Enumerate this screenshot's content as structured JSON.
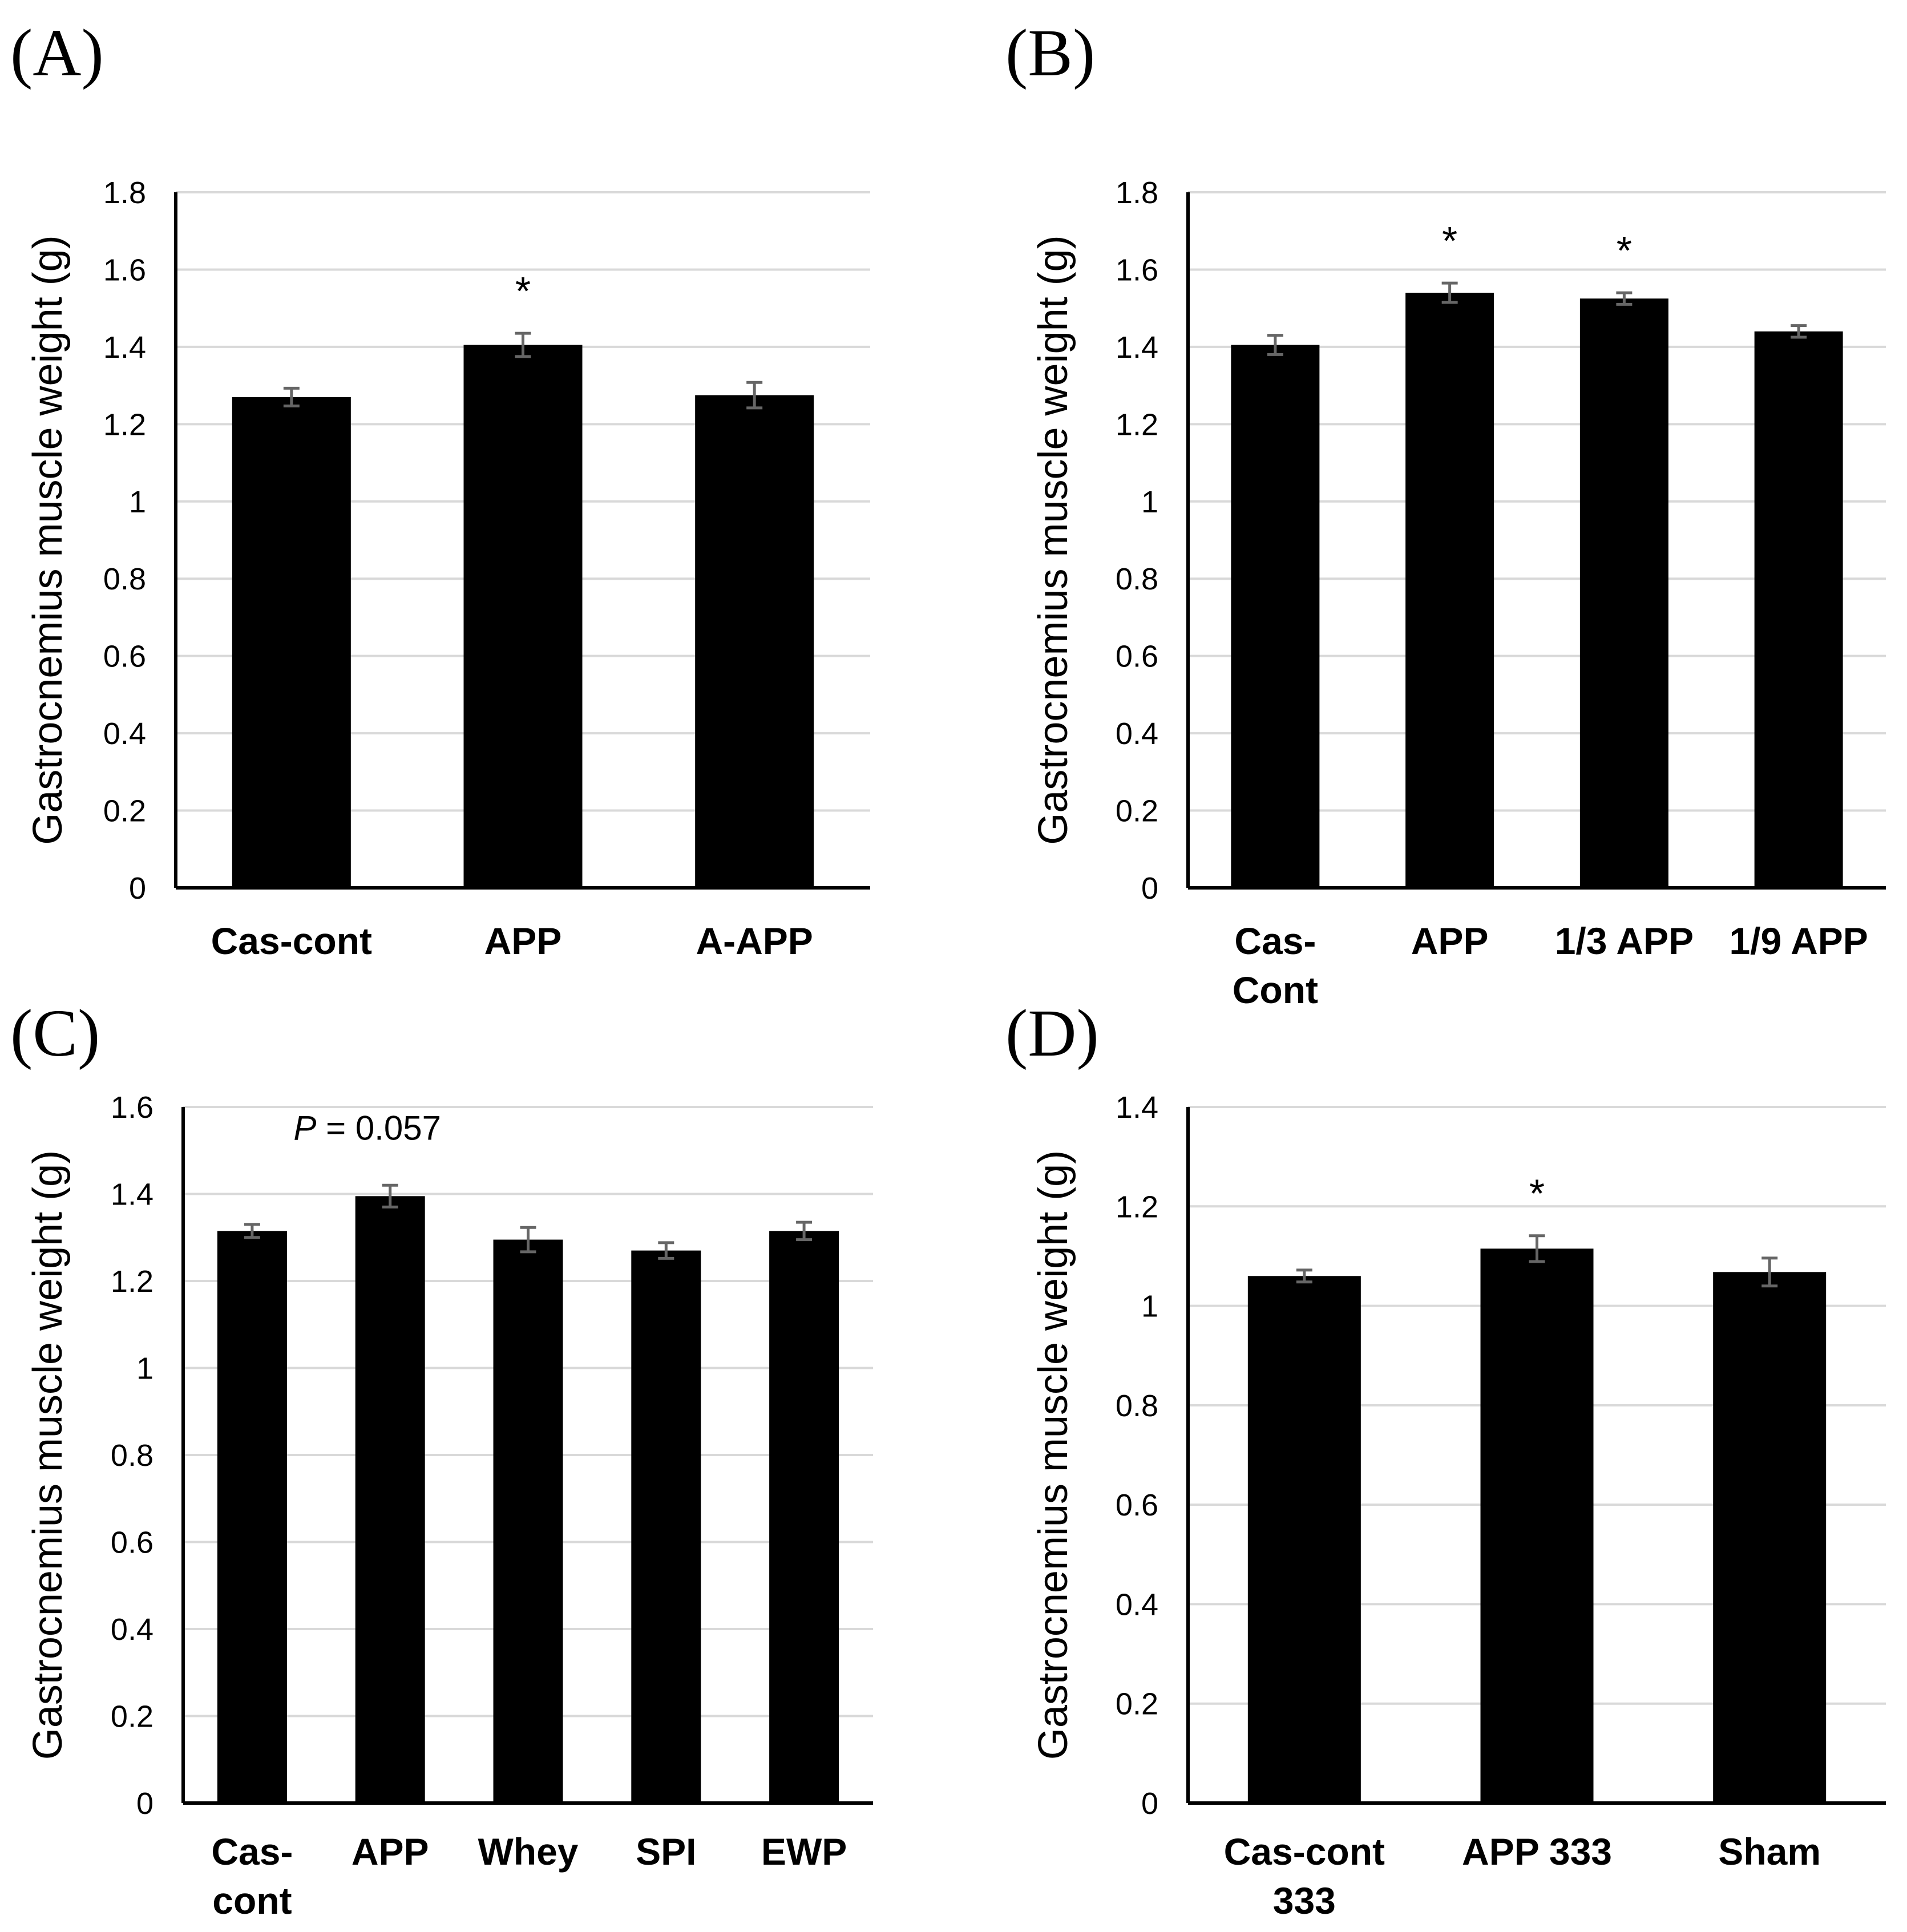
{
  "chart_data": [
    {
      "type": "bar",
      "panel": "(A)",
      "ylabel": "Gastrocnemius muscle weight (g)",
      "ylim": [
        0,
        1.8
      ],
      "yticks": [
        "0",
        "0.2",
        "0.4",
        "0.6",
        "0.8",
        "1",
        "1.2",
        "1.4",
        "1.6",
        "1.8"
      ],
      "categories": [
        [
          "Cas-cont"
        ],
        [
          "APP"
        ],
        [
          "A-APP"
        ]
      ],
      "values": [
        1.27,
        1.405,
        1.275
      ],
      "errors": [
        0.023,
        0.03,
        0.033
      ],
      "significance": [
        "",
        "*",
        ""
      ],
      "grid": true
    },
    {
      "type": "bar",
      "panel": "(B)",
      "ylabel": "Gastrocnemius muscle weight (g)",
      "ylim": [
        0,
        1.8
      ],
      "yticks": [
        "0",
        "0.2",
        "0.4",
        "0.6",
        "0.8",
        "1",
        "1.2",
        "1.4",
        "1.6",
        "1.8"
      ],
      "categories": [
        [
          "Cas-",
          "Cont"
        ],
        [
          "APP"
        ],
        [
          "1/3 APP"
        ],
        [
          "1/9 APP"
        ]
      ],
      "values": [
        1.405,
        1.54,
        1.525,
        1.44
      ],
      "errors": [
        0.025,
        0.025,
        0.015,
        0.015
      ],
      "significance": [
        "",
        "*",
        "*",
        ""
      ],
      "grid": true
    },
    {
      "type": "bar",
      "panel": "(C)",
      "ylabel": "Gastrocnemius muscle weight (g)",
      "ylim": [
        0,
        1.6
      ],
      "yticks": [
        "0",
        "0.2",
        "0.4",
        "0.6",
        "0.8",
        "1",
        "1.2",
        "1.4",
        "1.6"
      ],
      "categories": [
        [
          "Cas-",
          "cont"
        ],
        [
          "APP"
        ],
        [
          "Whey"
        ],
        [
          "SPI"
        ],
        [
          "EWP"
        ]
      ],
      "values": [
        1.315,
        1.395,
        1.295,
        1.27,
        1.315
      ],
      "errors": [
        0.015,
        0.025,
        0.028,
        0.018,
        0.02
      ],
      "significance": [
        "",
        "P = 0.057",
        "",
        "",
        ""
      ],
      "grid": true
    },
    {
      "type": "bar",
      "panel": "(D)",
      "ylabel": "Gastrocnemius muscle weight (g)",
      "ylim": [
        0,
        1.4
      ],
      "yticks": [
        "0",
        "0.2",
        "0.4",
        "0.6",
        "0.8",
        "1",
        "1.2",
        "1.4"
      ],
      "categories": [
        [
          "Cas-cont",
          "333"
        ],
        [
          "APP 333"
        ],
        [
          "Sham"
        ]
      ],
      "values": [
        1.06,
        1.115,
        1.068
      ],
      "errors": [
        0.012,
        0.026,
        0.028
      ],
      "significance": [
        "",
        "*",
        ""
      ],
      "grid": true
    }
  ]
}
